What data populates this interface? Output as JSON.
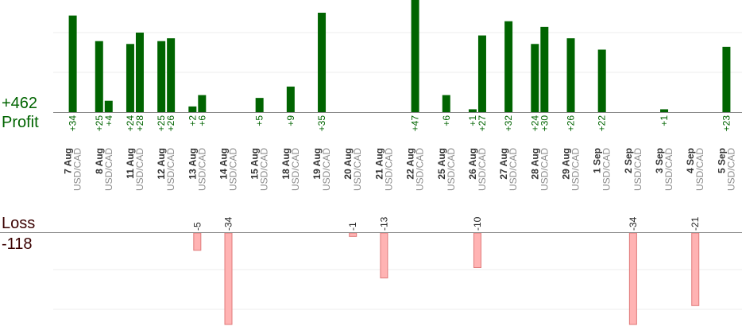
{
  "summary": {
    "profit_total": "+462",
    "profit_label": "Profit",
    "loss_label": "Loss",
    "loss_total": "-118"
  },
  "colors": {
    "profit_bar": "#006400",
    "profit_text": "#006400",
    "loss_bar": "#ffb3b3",
    "loss_bar_stroke": "#e07a7a",
    "loss_text": "#3a0000",
    "date_text": "#333333",
    "pair_text": "#8c8c8c",
    "grid": "#eeeeee",
    "axis": "#888888"
  },
  "chart_data": {
    "type": "bar",
    "title": "",
    "xlabel": "",
    "ylabel": "",
    "profit_ylim": [
      0,
      28
    ],
    "loss_ylim": [
      0,
      23
    ],
    "dates": [
      {
        "date": "7 Aug",
        "pair": "USD/CAD"
      },
      {
        "date": "8 Aug",
        "pair": "USD/CAD"
      },
      {
        "date": "11 Aug",
        "pair": "USD/CAD"
      },
      {
        "date": "12 Aug",
        "pair": "USD/CAD"
      },
      {
        "date": "13 Aug",
        "pair": "USD/CAD"
      },
      {
        "date": "14 Aug",
        "pair": "USD/CAD"
      },
      {
        "date": "15 Aug",
        "pair": "USD/CAD"
      },
      {
        "date": "18 Aug",
        "pair": "USD/CAD"
      },
      {
        "date": "19 Aug",
        "pair": "USD/CAD"
      },
      {
        "date": "20 Aug",
        "pair": "USD/CAD"
      },
      {
        "date": "21 Aug",
        "pair": "USD/CAD"
      },
      {
        "date": "22 Aug",
        "pair": "USD/CAD"
      },
      {
        "date": "25 Aug",
        "pair": "USD/CAD"
      },
      {
        "date": "26 Aug",
        "pair": "USD/CAD"
      },
      {
        "date": "27 Aug",
        "pair": "USD/CAD"
      },
      {
        "date": "28 Aug",
        "pair": "USD/CAD"
      },
      {
        "date": "29 Aug",
        "pair": "USD/CAD"
      },
      {
        "date": "1 Sep",
        "pair": "USD/CAD"
      },
      {
        "date": "2 Sep",
        "pair": "USD/CAD"
      },
      {
        "date": "3 Sep",
        "pair": "USD/CAD"
      },
      {
        "date": "4 Sep",
        "pair": "USD/CAD"
      },
      {
        "date": "5 Sep",
        "pair": "USD/CAD"
      }
    ],
    "profits": [
      {
        "day": 0,
        "value": 34,
        "label": "+34"
      },
      {
        "day": 1,
        "value": 25,
        "label": "+25"
      },
      {
        "day": 1,
        "value": 4,
        "label": "+4"
      },
      {
        "day": 2,
        "value": 24,
        "label": "+24"
      },
      {
        "day": 2,
        "value": 28,
        "label": "+28"
      },
      {
        "day": 3,
        "value": 25,
        "label": "+25"
      },
      {
        "day": 3,
        "value": 26,
        "label": "+26"
      },
      {
        "day": 4,
        "value": 2,
        "label": "+2"
      },
      {
        "day": 4,
        "value": 6,
        "label": "+6"
      },
      {
        "day": 6,
        "value": 5,
        "label": "+5"
      },
      {
        "day": 7,
        "value": 9,
        "label": "+9"
      },
      {
        "day": 8,
        "value": 35,
        "label": "+35"
      },
      {
        "day": 11,
        "value": 47,
        "label": "+47"
      },
      {
        "day": 12,
        "value": 6,
        "label": "+6"
      },
      {
        "day": 13,
        "value": 1,
        "label": "+1"
      },
      {
        "day": 13,
        "value": 27,
        "label": "+27"
      },
      {
        "day": 14,
        "value": 32,
        "label": "+32"
      },
      {
        "day": 15,
        "value": 24,
        "label": "+24"
      },
      {
        "day": 15,
        "value": 30,
        "label": "+30"
      },
      {
        "day": 16,
        "value": 26,
        "label": "+26"
      },
      {
        "day": 17,
        "value": 22,
        "label": "+22"
      },
      {
        "day": 19,
        "value": 1,
        "label": "+1"
      },
      {
        "day": 21,
        "value": 23,
        "label": "+23"
      }
    ],
    "losses": [
      {
        "day": 4,
        "value": -5,
        "label": "-5"
      },
      {
        "day": 5,
        "value": -34,
        "label": "-34"
      },
      {
        "day": 9,
        "value": -1,
        "label": "-1"
      },
      {
        "day": 10,
        "value": -13,
        "label": "-13"
      },
      {
        "day": 13,
        "value": -10,
        "label": "-10"
      },
      {
        "day": 18,
        "value": -34,
        "label": "-34"
      },
      {
        "day": 20,
        "value": -21,
        "label": "-21"
      }
    ]
  }
}
